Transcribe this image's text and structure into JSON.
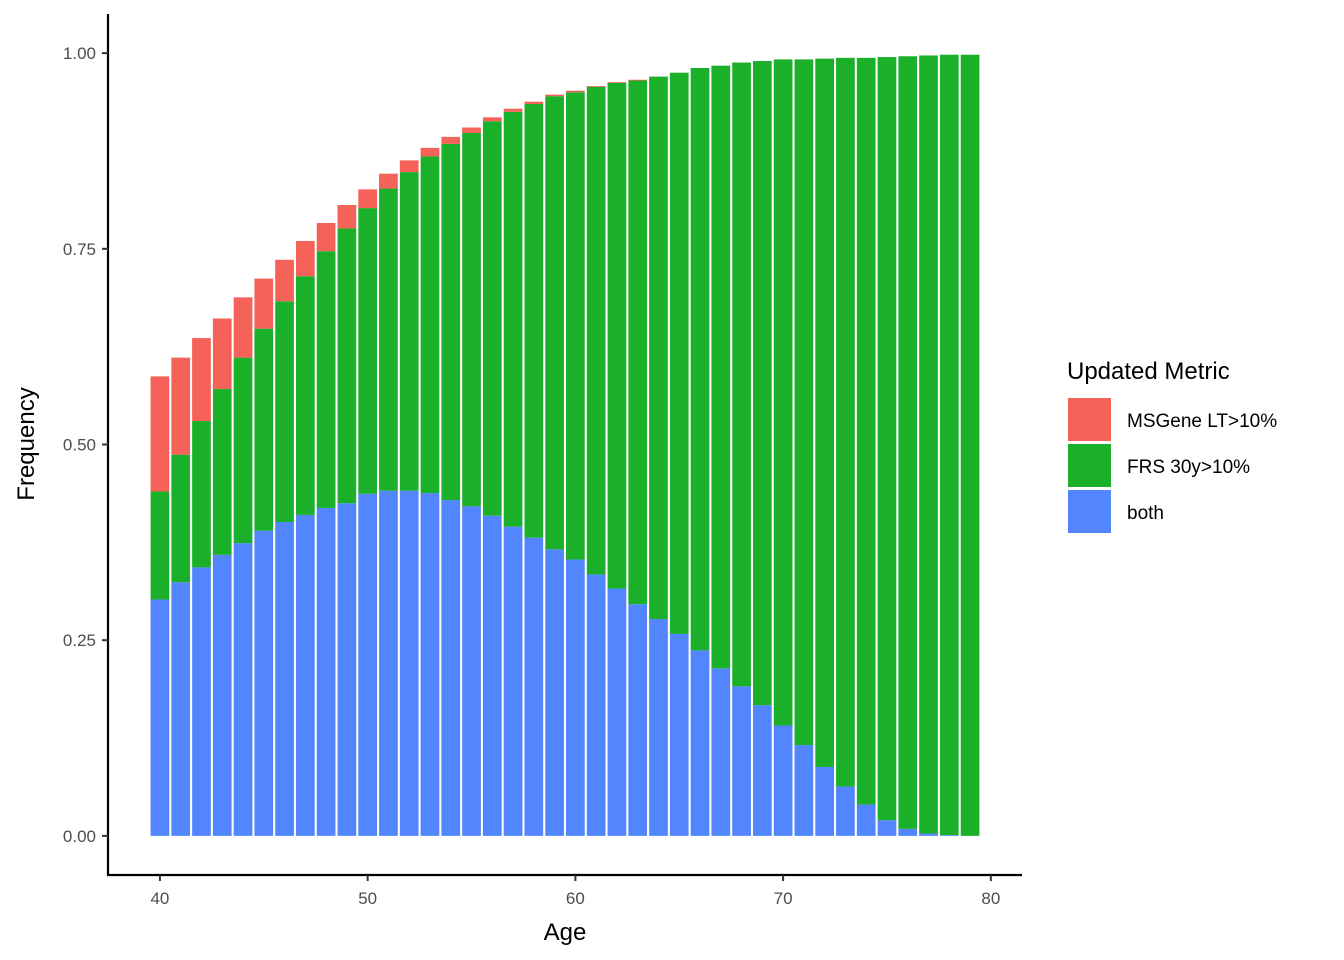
{
  "chart_data": {
    "type": "bar",
    "stacked": true,
    "xlabel": "Age",
    "ylabel": "Frequency",
    "xlim": [
      37.5,
      81.5
    ],
    "ylim": [
      -0.05,
      1.05
    ],
    "x_ticks": [
      40,
      50,
      60,
      70,
      80
    ],
    "x_tick_labels": [
      "40",
      "50",
      "60",
      "70",
      "80"
    ],
    "y_ticks": [
      0,
      0.25,
      0.5,
      0.75,
      1.0
    ],
    "y_tick_labels": [
      "0.00",
      "0.25",
      "0.50",
      "0.75",
      "1.00"
    ],
    "grid": false,
    "legend": {
      "title": "Updated Metric",
      "position": "right",
      "entries": [
        "MSGene LT>10%",
        "FRS 30y>10%",
        "both"
      ]
    },
    "x": [
      40,
      41,
      42,
      43,
      44,
      45,
      46,
      47,
      48,
      49,
      50,
      51,
      52,
      53,
      54,
      55,
      56,
      57,
      58,
      59,
      60,
      61,
      62,
      63,
      64,
      65,
      66,
      67,
      68,
      69,
      70,
      71,
      72,
      73,
      74,
      75,
      76,
      77,
      78,
      79
    ],
    "series": [
      {
        "name": "both",
        "color": "#5386FE",
        "values": [
          0.302,
          0.324,
          0.343,
          0.359,
          0.374,
          0.39,
          0.401,
          0.41,
          0.419,
          0.425,
          0.437,
          0.441,
          0.441,
          0.438,
          0.429,
          0.421,
          0.409,
          0.395,
          0.381,
          0.366,
          0.353,
          0.334,
          0.316,
          0.296,
          0.277,
          0.258,
          0.237,
          0.214,
          0.191,
          0.167,
          0.141,
          0.116,
          0.088,
          0.063,
          0.04,
          0.02,
          0.009,
          0.003,
          0.001,
          0.0
        ]
      },
      {
        "name": "FRS 30y>10%",
        "color": "#1AB02A",
        "values": [
          0.138,
          0.163,
          0.187,
          0.212,
          0.237,
          0.258,
          0.282,
          0.305,
          0.328,
          0.351,
          0.365,
          0.386,
          0.407,
          0.43,
          0.455,
          0.477,
          0.504,
          0.53,
          0.554,
          0.579,
          0.597,
          0.623,
          0.646,
          0.669,
          0.693,
          0.717,
          0.744,
          0.77,
          0.797,
          0.823,
          0.851,
          0.876,
          0.905,
          0.931,
          0.954,
          0.975,
          0.987,
          0.994,
          0.997,
          0.998
        ]
      },
      {
        "name": "MSGene LT>10%",
        "color": "#F4625A",
        "values": [
          0.147,
          0.124,
          0.106,
          0.09,
          0.077,
          0.064,
          0.053,
          0.045,
          0.036,
          0.03,
          0.024,
          0.019,
          0.015,
          0.011,
          0.009,
          0.007,
          0.005,
          0.004,
          0.003,
          0.002,
          0.002,
          0.001,
          0.001,
          0.001,
          0.0,
          0.0,
          0.0,
          0.0,
          0.0,
          0.0,
          0.0,
          0.0,
          0.0,
          0.0,
          0.0,
          0.0,
          0.0,
          0.0,
          0.0,
          0.0
        ]
      }
    ]
  }
}
